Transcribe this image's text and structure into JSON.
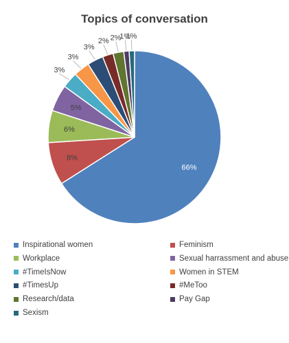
{
  "chart_data": {
    "type": "pie",
    "title": "Topics of conversation",
    "legend_position": "bottom",
    "slices": [
      {
        "name": "Inspirational women",
        "value": 66,
        "label": "66%",
        "color": "#4f81bd"
      },
      {
        "name": "Feminism",
        "value": 8,
        "label": "8%",
        "color": "#c0504d"
      },
      {
        "name": "Workplace",
        "value": 6,
        "label": "6%",
        "color": "#9bbb59"
      },
      {
        "name": "Sexual harrassment and abuse",
        "value": 5,
        "label": "5%",
        "color": "#8064a2"
      },
      {
        "name": "#TimeIsNow",
        "value": 3,
        "label": "3%",
        "color": "#4bacc6"
      },
      {
        "name": "Women in STEM",
        "value": 3,
        "label": "3%",
        "color": "#f79646"
      },
      {
        "name": "#TimesUp",
        "value": 3,
        "label": "3%",
        "color": "#2c4d75"
      },
      {
        "name": "#MeToo",
        "value": 2,
        "label": "2%",
        "color": "#772c2a"
      },
      {
        "name": "Research/data",
        "value": 2,
        "label": "2%",
        "color": "#5f7530"
      },
      {
        "name": "Pay Gap",
        "value": 1,
        "label": "1%",
        "color": "#4d3b62"
      },
      {
        "name": "Sexism",
        "value": 1,
        "label": "1%",
        "color": "#276a7c"
      }
    ]
  }
}
